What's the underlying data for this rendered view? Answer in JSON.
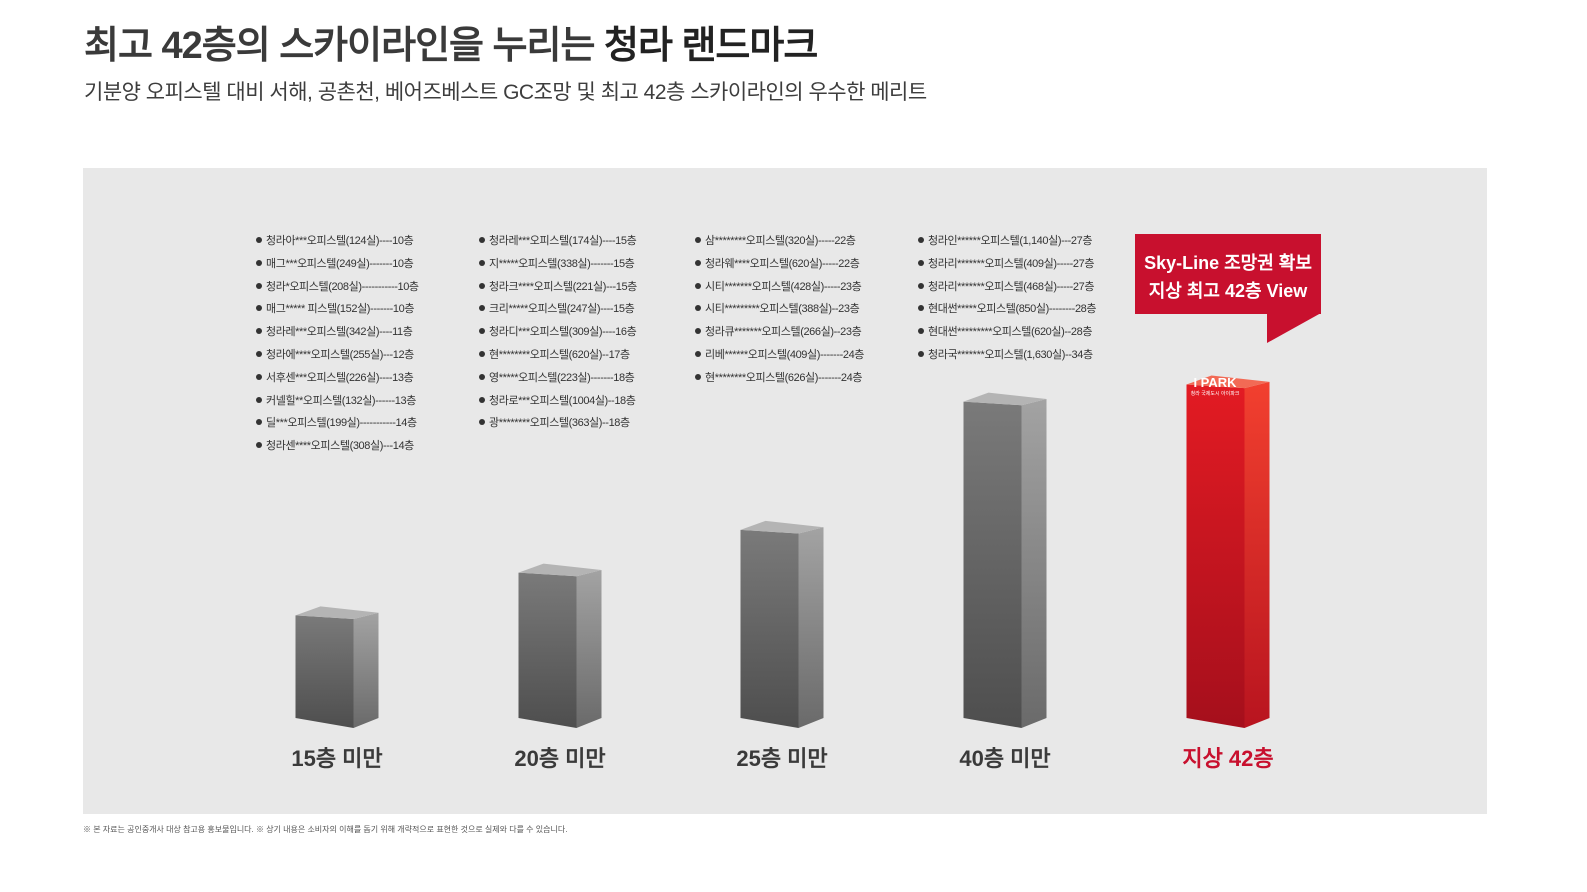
{
  "header": {
    "title_prefix": "최고 42층의 스카이라인을 누리는 ",
    "title_emphasis": "청라 랜드마크",
    "subtitle": "기분양 오피스텔 대비 서해, 공촌천, 베어즈베스트 GC조망 및 최고 42층 스카이라인의 우수한 메리트"
  },
  "colors": {
    "panel_bg": "#e8e8e8",
    "gray_bar": "#6e6e6e",
    "highlight_red": "#c8102e"
  },
  "chart_data": {
    "type": "bar",
    "categories": [
      "15층 미만",
      "20층 미만",
      "25층 미만",
      "40층 미만",
      "지상 42층"
    ],
    "values": [
      15,
      20,
      25,
      40,
      42
    ],
    "value_unit": "층",
    "highlight_index": 4,
    "legend": "none",
    "grid": false
  },
  "lists": [
    [
      "청라아***오피스텔(124실)----10층",
      "매그***오피스텔(249실)-------10층",
      "청라*오피스텔(208실)-----------10층",
      "매그***** 피스텔(152실)-------10층",
      "청라레***오피스텔(342실)----11층",
      "청라에****오피스텔(255실)---12층",
      "서후센***오피스텔(226실)----13층",
      "커넬힐**오피스텔(132실)------13층",
      "딜***오피스텔(199실)-----------14층",
      "청라센****오피스텔(308실)---14층"
    ],
    [
      "청라레***오피스텔(174실)----15층",
      "지*****오피스텔(338실)-------15층",
      "청라크****오피스텔(221실)---15층",
      "크리*****오피스텔(247실)----15층",
      "청라디***오피스텔(309실)----16층",
      "현********오피스텔(620실)--17층",
      "영*****오피스텔(223실)-------18층",
      "청라로***오피스텔(1004실)--18층",
      "광********오피스텔(363실)--18층"
    ],
    [
      "삼********오피스텔(320실)-----22층",
      "청라웨****오피스텔(620실)-----22층",
      "시티*******오피스텔(428실)-----23층",
      "시티*********오피스텔(388실)--23층",
      "청라큐*******오피스텔(266실)--23층",
      "리베******오피스텔(409실)-------24층",
      "현********오피스텔(626실)-------24층"
    ],
    [
      "청라인******오피스텔(1,140실)---27층",
      "청라리*******오피스텔(409실)-----27층",
      "청라리*******오피스텔(468실)-----27층",
      "현대썬*****오피스텔(850실)--------28층",
      "현대썬*********오피스텔(620실)--28층",
      "청라국*******오피스텔(1,630실)--34층"
    ]
  ],
  "callout": {
    "line1": "Sky-Line 조망권 확보",
    "line2": "지상 최고 42층 View"
  },
  "brand": {
    "logo": "I PARK",
    "sub": "청라 국제도시 아이파크"
  },
  "footnote": "※ 본 자료는 공인중개사 대상 참고용 홍보물입니다. ※ 상기 내용은 소비자의 이해를 돕기 위해 개략적으로 표현한 것으로 실제와 다를 수 있습니다."
}
